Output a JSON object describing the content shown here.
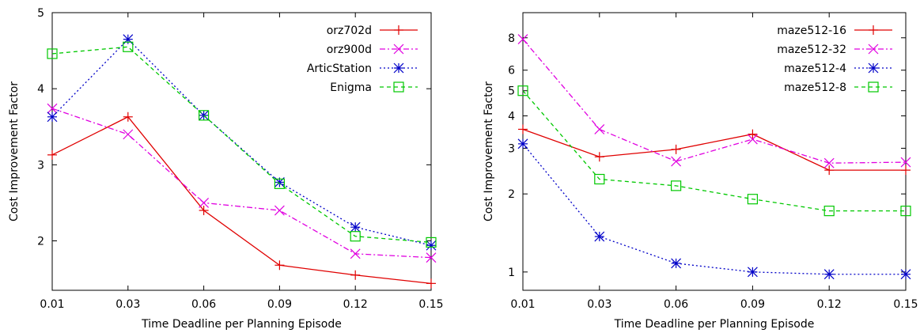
{
  "chart_data": [
    {
      "type": "line",
      "xlabel": "Time Deadline per Planning Episode",
      "ylabel": "Cost Improvement Factor",
      "x": [
        0.01,
        0.03,
        0.06,
        0.09,
        0.12,
        0.15
      ],
      "x_tick_labels": [
        "0.01",
        "0.03",
        "0.06",
        "0.09",
        "0.12",
        "0.15"
      ],
      "xscale": "categorical-evenly-spaced",
      "ylim": [
        1.35,
        5
      ],
      "y_ticks": [
        2,
        3,
        4,
        5
      ],
      "legend_position": "top-right",
      "grid": false,
      "series": [
        {
          "name": "orz702d",
          "color": "#e00000",
          "marker": "plus",
          "dash": "solid",
          "values": [
            3.13,
            3.63,
            2.4,
            1.68,
            1.55,
            1.44
          ]
        },
        {
          "name": "orz900d",
          "color": "#e000e0",
          "marker": "cross",
          "dash": "dashdot",
          "values": [
            3.74,
            3.4,
            2.5,
            2.4,
            1.83,
            1.78
          ]
        },
        {
          "name": "ArticStation",
          "color": "#0000c8",
          "marker": "star",
          "dash": "dotted",
          "values": [
            3.63,
            4.65,
            3.65,
            2.77,
            2.18,
            1.94
          ]
        },
        {
          "name": "Enigma",
          "color": "#00c800",
          "marker": "square",
          "dash": "dashed",
          "values": [
            4.46,
            4.55,
            3.65,
            2.75,
            2.06,
            1.98
          ]
        }
      ]
    },
    {
      "type": "line",
      "xlabel": "Time Deadline per Planning Episode",
      "ylabel": "Cost Improvement Factor",
      "x": [
        0.01,
        0.03,
        0.06,
        0.09,
        0.12,
        0.15
      ],
      "x_tick_labels": [
        "0.01",
        "0.03",
        "0.06",
        "0.09",
        "0.12",
        "0.15"
      ],
      "xscale": "categorical-evenly-spaced",
      "yscale": "log",
      "ylim": [
        0.85,
        10
      ],
      "y_ticks": [
        1,
        2,
        3,
        4,
        5,
        6,
        8
      ],
      "legend_position": "top-right",
      "grid": false,
      "series": [
        {
          "name": "maze512-16",
          "color": "#e00000",
          "marker": "plus",
          "dash": "solid",
          "values": [
            3.55,
            2.78,
            2.97,
            3.4,
            2.47,
            2.47
          ]
        },
        {
          "name": "maze512-32",
          "color": "#e000e0",
          "marker": "cross",
          "dash": "dashdot",
          "values": [
            7.9,
            3.55,
            2.67,
            3.25,
            2.63,
            2.65
          ]
        },
        {
          "name": "maze512-4",
          "color": "#0000c8",
          "marker": "star",
          "dash": "dotted",
          "values": [
            3.12,
            1.37,
            1.08,
            1.0,
            0.98,
            0.98
          ]
        },
        {
          "name": "maze512-8",
          "color": "#00c800",
          "marker": "square",
          "dash": "dashed",
          "values": [
            5.0,
            2.28,
            2.15,
            1.91,
            1.72,
            1.72
          ]
        }
      ]
    }
  ]
}
